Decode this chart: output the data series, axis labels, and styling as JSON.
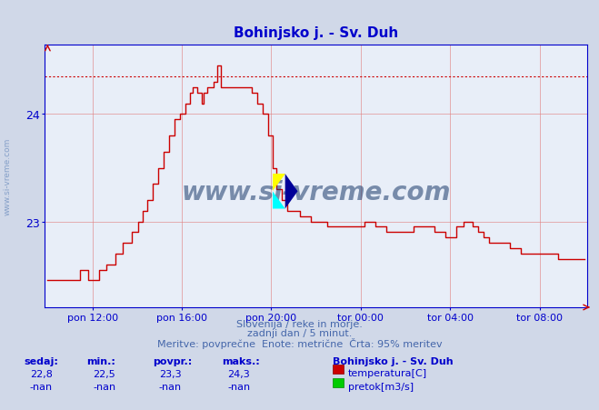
{
  "title": "Bohinjsko j. - Sv. Duh",
  "title_color": "#0000cc",
  "bg_color": "#d0d8e8",
  "plot_bg_color": "#e8eef8",
  "grid_color": "#e08080",
  "axis_color": "#0000cc",
  "line_color": "#cc0000",
  "dashed_line_color": "#cc0000",
  "dashed_line_value": 24.35,
  "y_min": 22.2,
  "y_max": 24.65,
  "y_ticks": [
    23,
    24
  ],
  "xlabel_color": "#4466aa",
  "footer_line1": "Slovenija / reke in morje.",
  "footer_line2": "zadnji dan / 5 minut.",
  "footer_line3": "Meritve: povprečne  Enote: metrične  Črta: 95% meritev",
  "footer_color": "#4466aa",
  "legend_title": "Bohinjsko j. - Sv. Duh",
  "legend_color": "#0000cc",
  "stat_headers": [
    "sedaj:",
    "min.:",
    "povpr.:",
    "maks.:"
  ],
  "stat_values_temp": [
    "22,8",
    "22,5",
    "23,3",
    "24,3"
  ],
  "stat_values_pretok": [
    "-nan",
    "-nan",
    "-nan",
    "-nan"
  ],
  "stat_color": "#0000cc",
  "x_tick_labels": [
    "pon 12:00",
    "pon 16:00",
    "pon 20:00",
    "tor 00:00",
    "tor 04:00",
    "tor 08:00"
  ],
  "watermark": "www.si-vreme.com",
  "watermark_color": "#1a3a6b",
  "side_watermark_color": "#6688bb"
}
